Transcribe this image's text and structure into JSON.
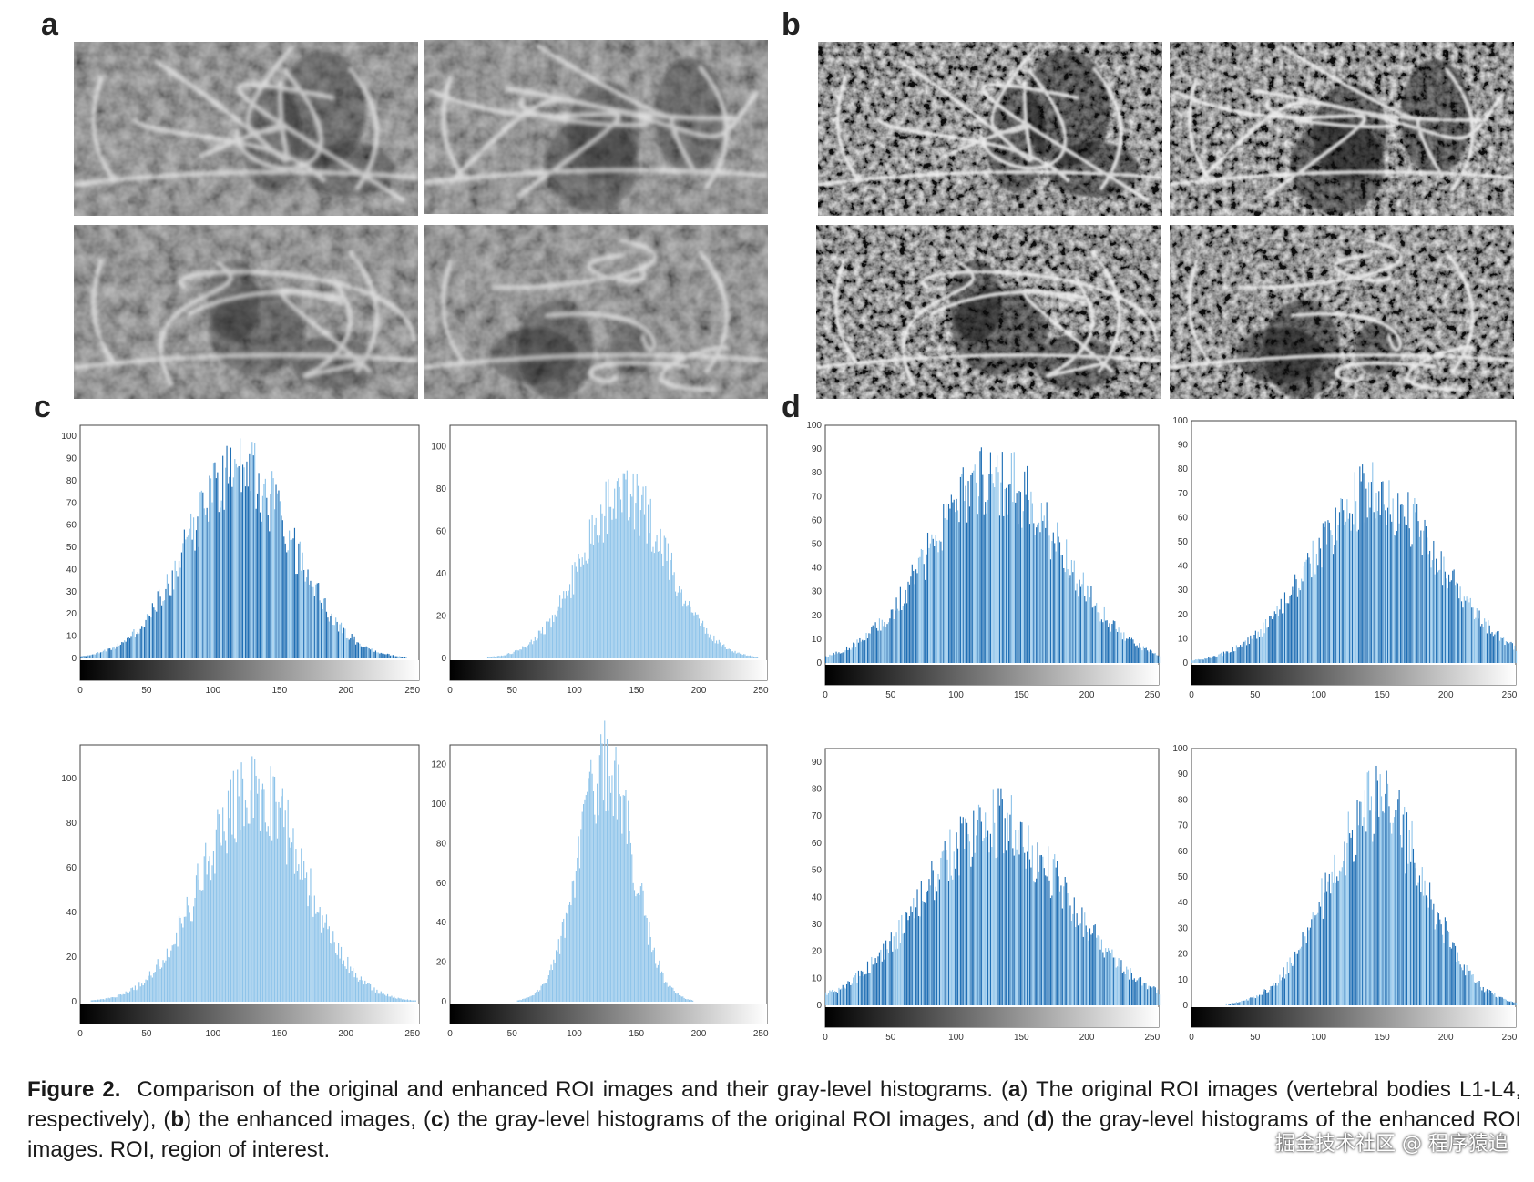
{
  "panels": {
    "a": "a",
    "b": "b",
    "c": "c",
    "d": "d"
  },
  "caption": {
    "figure_label": "Figure 2.",
    "text_1": "Comparison of the original and enhanced ROI images and their gray-level histograms. (",
    "bold_a": "a",
    "text_2": ") The original ROI images (vertebral bodies L1-L4, respectively), (",
    "bold_b": "b",
    "text_3": ") the enhanced images, (",
    "bold_c": "c",
    "text_4": ") the gray-level histograms of the original ROI images, and (",
    "bold_d": "d",
    "text_5": ") the gray-level histograms of the enhanced ROI images. ROI, region of interest."
  },
  "watermark": "掘金技术社区 @ 程序猿追",
  "colors": {
    "bar_dark": "#1f6fb5",
    "bar_light": "#8fc4ea",
    "axis": "#444444"
  },
  "chart_data": [
    {
      "id": "c1",
      "type": "bar",
      "xlim": [
        0,
        255
      ],
      "ylim": [
        0,
        105
      ],
      "xticks": [
        0,
        50,
        100,
        150,
        200,
        250
      ],
      "yticks": [
        0,
        10,
        20,
        30,
        40,
        50,
        60,
        70,
        80,
        90,
        100
      ],
      "peak_x": 120,
      "peak_y": 88,
      "spread": 40,
      "style": "mixed"
    },
    {
      "id": "c2",
      "type": "bar",
      "xlim": [
        0,
        255
      ],
      "ylim": [
        0,
        110
      ],
      "xticks": [
        0,
        50,
        100,
        150,
        200,
        250
      ],
      "yticks": [
        0,
        20,
        40,
        60,
        80,
        100
      ],
      "peak_x": 140,
      "peak_y": 80,
      "spread": 35,
      "style": "light"
    },
    {
      "id": "c3",
      "type": "bar",
      "xlim": [
        0,
        255
      ],
      "ylim": [
        0,
        115
      ],
      "xticks": [
        0,
        50,
        100,
        150,
        200,
        250
      ],
      "yticks": [
        0,
        20,
        40,
        60,
        80,
        100
      ],
      "peak_x": 130,
      "peak_y": 100,
      "spread": 38,
      "style": "light"
    },
    {
      "id": "c4",
      "type": "bar",
      "xlim": [
        0,
        255
      ],
      "ylim": [
        0,
        130
      ],
      "xticks": [
        0,
        50,
        100,
        150,
        200,
        250
      ],
      "yticks": [
        0,
        20,
        40,
        60,
        80,
        100,
        120
      ],
      "peak_x": 125,
      "peak_y": 125,
      "spread": 22,
      "style": "light"
    },
    {
      "id": "d1",
      "type": "bar",
      "xlim": [
        0,
        255
      ],
      "ylim": [
        0,
        100
      ],
      "xticks": [
        0,
        50,
        100,
        150,
        200,
        250
      ],
      "yticks": [
        0,
        10,
        20,
        30,
        40,
        50,
        60,
        70,
        80,
        90,
        100
      ],
      "peak_x": 130,
      "peak_y": 82,
      "spread": 50,
      "style": "mixed"
    },
    {
      "id": "d2",
      "type": "bar",
      "xlim": [
        0,
        255
      ],
      "ylim": [
        0,
        100
      ],
      "xticks": [
        0,
        50,
        100,
        150,
        200,
        250
      ],
      "yticks": [
        0,
        10,
        20,
        30,
        40,
        50,
        60,
        70,
        80,
        90,
        100
      ],
      "peak_x": 145,
      "peak_y": 73,
      "spread": 50,
      "style": "mixed"
    },
    {
      "id": "d3",
      "type": "bar",
      "xlim": [
        0,
        255
      ],
      "ylim": [
        0,
        95
      ],
      "xticks": [
        0,
        50,
        100,
        150,
        200,
        250
      ],
      "yticks": [
        0,
        10,
        20,
        30,
        40,
        50,
        60,
        70,
        80,
        90
      ],
      "peak_x": 130,
      "peak_y": 70,
      "spread": 55,
      "style": "mixed"
    },
    {
      "id": "d4",
      "type": "bar",
      "xlim": [
        0,
        255
      ],
      "ylim": [
        0,
        100
      ],
      "xticks": [
        0,
        50,
        100,
        150,
        200,
        250
      ],
      "yticks": [
        0,
        10,
        20,
        30,
        40,
        50,
        60,
        70,
        80,
        90,
        100
      ],
      "peak_x": 145,
      "peak_y": 82,
      "spread": 38,
      "style": "mixed"
    }
  ]
}
